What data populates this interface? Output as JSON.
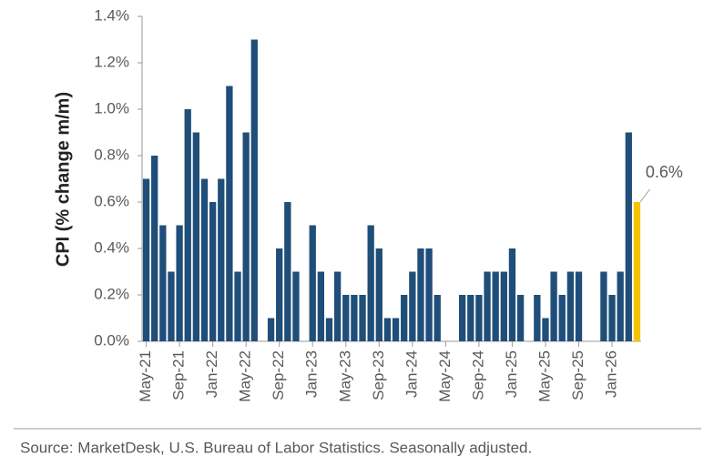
{
  "chart_data": {
    "type": "bar",
    "y_label": "CPI (% change m/m)",
    "source": "Source: MarketDesk, U.S. Bureau of Labor Statistics. Seasonally adjusted.",
    "categories": [
      "May-21",
      null,
      null,
      null,
      "Sep-21",
      null,
      null,
      null,
      "Jan-22",
      null,
      null,
      null,
      "May-22",
      null,
      null,
      null,
      "Sep-22",
      null,
      null,
      null,
      "Jan-23",
      null,
      null,
      null,
      "May-23",
      null,
      null,
      null,
      "Sep-23",
      null,
      null,
      null,
      "Jan-24",
      null,
      null,
      null,
      "May-24",
      null,
      null,
      null,
      "Sep-24",
      null,
      null,
      null,
      "Jan-25",
      null,
      null,
      null,
      "May-25",
      null,
      null,
      null,
      "Sep-25",
      null,
      null,
      null,
      "Jan-26",
      null,
      null,
      null
    ],
    "values": [
      0.7,
      0.8,
      0.5,
      0.3,
      0.5,
      1.0,
      0.9,
      0.7,
      0.6,
      0.7,
      1.1,
      0.3,
      0.9,
      1.3,
      0,
      0.1,
      0.4,
      0.6,
      0.3,
      0,
      0.5,
      0.3,
      0.1,
      0.3,
      0.2,
      0.2,
      0.2,
      0.5,
      0.4,
      0.1,
      0.1,
      0.2,
      0.3,
      0.4,
      0.4,
      0.2,
      0,
      0,
      0.2,
      0.2,
      0.2,
      0.3,
      0.3,
      0.3,
      0.4,
      0.2,
      0,
      0.2,
      0.1,
      0.3,
      0.2,
      0.3,
      0.3,
      null,
      null,
      0.3,
      0.2,
      0.3,
      0.9,
      0.6
    ],
    "value_labels": [
      null,
      null,
      null,
      null,
      null,
      null,
      null,
      null,
      null,
      null,
      null,
      null,
      null,
      null,
      null,
      null,
      null,
      null,
      null,
      null,
      null,
      null,
      null,
      null,
      null,
      null,
      null,
      null,
      null,
      null,
      null,
      null,
      null,
      null,
      null,
      null,
      null,
      null,
      null,
      null,
      null,
      null,
      null,
      null,
      null,
      null,
      null,
      null,
      null,
      null,
      null,
      null,
      null,
      null,
      null,
      null,
      null,
      null,
      null,
      "0.6%"
    ],
    "color": "#1f4e79",
    "highlight_color": "#f5c400",
    "highlight_index": 59,
    "ylim": [
      0,
      1.4
    ],
    "yticks": [
      {
        "value": 0,
        "label": "0.0%"
      },
      {
        "value": 0.2,
        "label": "0.2%"
      },
      {
        "value": 0.4,
        "label": "0.4%"
      },
      {
        "value": 0.6,
        "label": "0.6%"
      },
      {
        "value": 0.8,
        "label": "0.8%"
      },
      {
        "value": 1.0,
        "label": "1.0%"
      },
      {
        "value": 1.2,
        "label": "1.2%"
      },
      {
        "value": 1.4,
        "label": "1.4%"
      }
    ]
  }
}
